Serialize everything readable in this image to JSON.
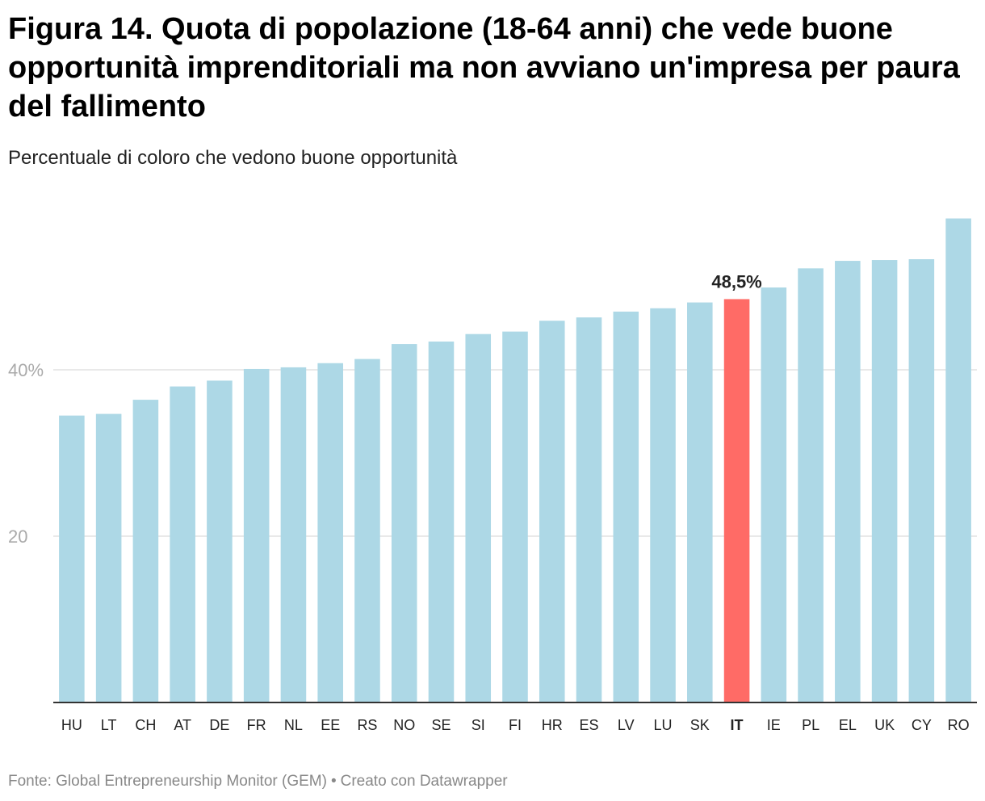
{
  "title": "Figura 14. Quota di popolazione (18-64 anni) che vede buone opportunità imprenditoriali ma non avviano un'impresa per paura del fallimento",
  "subtitle": "Percentuale di coloro che vedono buone opportunità",
  "footer": {
    "source": "Fonte: Global Entrepreneurship Monitor (GEM)",
    "separator": "•",
    "credit": "Creato con Datawrapper"
  },
  "colors": {
    "bar": "#add8e6",
    "highlight": "#ff6b66",
    "grid": "#e2e2e2",
    "axis": "#333333",
    "tick_label": "#aaaaaa"
  },
  "chart_data": {
    "type": "bar",
    "title": "Figura 14. Quota di popolazione (18-64 anni) che vede buone opportunità imprenditoriali ma non avviano un'impresa per paura del fallimento",
    "xlabel": "",
    "ylabel": "Percentuale di coloro che vedono buone opportunità",
    "ylim": [
      0,
      58
    ],
    "yticks": [
      {
        "value": 20,
        "label": "20"
      },
      {
        "value": 40,
        "label": "40%"
      }
    ],
    "grid": true,
    "highlight_category": "IT",
    "highlight_label": "48,5%",
    "categories": [
      "HU",
      "LT",
      "CH",
      "AT",
      "DE",
      "FR",
      "NL",
      "EE",
      "RS",
      "NO",
      "SE",
      "SI",
      "FI",
      "HR",
      "ES",
      "LV",
      "LU",
      "SK",
      "IT",
      "IE",
      "PL",
      "EL",
      "UK",
      "CY",
      "RO"
    ],
    "values": [
      34.5,
      34.7,
      36.4,
      38.0,
      38.7,
      40.1,
      40.3,
      40.8,
      41.3,
      43.1,
      43.4,
      44.3,
      44.6,
      45.9,
      46.3,
      47.0,
      47.4,
      48.1,
      48.5,
      49.9,
      52.2,
      53.1,
      53.2,
      53.3,
      58.2
    ]
  }
}
